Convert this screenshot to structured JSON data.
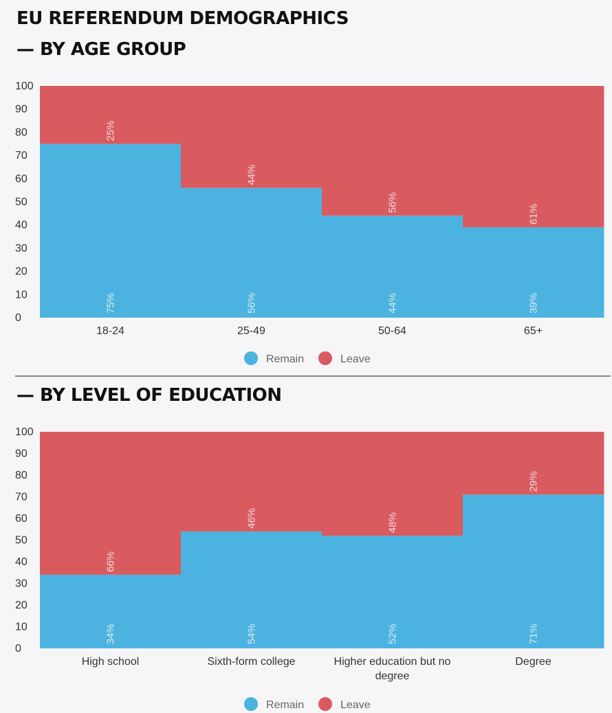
{
  "title": "EU REFERENDUM DEMOGRAPHICS",
  "colors": {
    "remain": "#4cb3e0",
    "leave": "#d95b60"
  },
  "chart_data": [
    {
      "type": "bar",
      "stacked": true,
      "title": "— BY AGE GROUP",
      "categories": [
        "18-24",
        "25-49",
        "50-64",
        "65+"
      ],
      "series": [
        {
          "name": "Remain",
          "values": [
            75,
            56,
            44,
            39
          ],
          "labels": [
            "75%",
            "56%",
            "44%",
            "39%"
          ]
        },
        {
          "name": "Leave",
          "values": [
            25,
            44,
            56,
            61
          ],
          "labels": [
            "25%",
            "44%",
            "56%",
            "61%"
          ]
        }
      ],
      "yticks": [
        "0",
        "10",
        "20",
        "30",
        "40",
        "50",
        "60",
        "70",
        "80",
        "90",
        "100"
      ],
      "ylim": [
        0,
        100
      ],
      "legend": "bottom",
      "grid": false
    },
    {
      "type": "bar",
      "stacked": true,
      "title": "— BY LEVEL OF EDUCATION",
      "categories": [
        "High school",
        "Sixth-form college",
        "Higher education but no degree",
        "Degree"
      ],
      "series": [
        {
          "name": "Remain",
          "values": [
            34,
            54,
            52,
            71
          ],
          "labels": [
            "34%",
            "54%",
            "52%",
            "71%"
          ]
        },
        {
          "name": "Leave",
          "values": [
            66,
            46,
            48,
            29
          ],
          "labels": [
            "66%",
            "46%",
            "48%",
            "29%"
          ]
        }
      ],
      "yticks": [
        "0",
        "10",
        "20",
        "30",
        "40",
        "50",
        "60",
        "70",
        "80",
        "90",
        "100"
      ],
      "ylim": [
        0,
        100
      ],
      "legend": "bottom",
      "grid": false
    }
  ]
}
